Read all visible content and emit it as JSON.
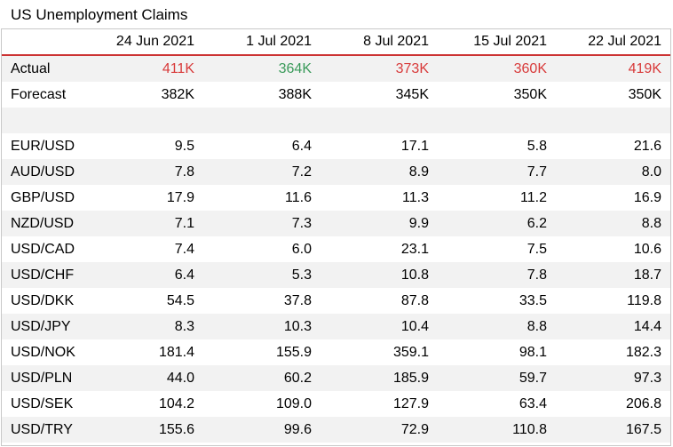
{
  "title": "US Unemployment Claims",
  "columns": [
    "24 Jun 2021",
    "1 Jul 2021",
    "8 Jul 2021",
    "15 Jul 2021",
    "22 Jul 2021"
  ],
  "actual": {
    "label": "Actual",
    "values": [
      "411K",
      "364K",
      "373K",
      "360K",
      "419K"
    ],
    "colors": [
      "#d83a3a",
      "#3a9a5a",
      "#d83a3a",
      "#d83a3a",
      "#d83a3a"
    ]
  },
  "forecast": {
    "label": "Forecast",
    "values": [
      "382K",
      "388K",
      "345K",
      "350K",
      "350K"
    ]
  },
  "rows": [
    {
      "label": "EUR/USD",
      "values": [
        "9.5",
        "6.4",
        "17.1",
        "5.8",
        "21.6"
      ]
    },
    {
      "label": "AUD/USD",
      "values": [
        "7.8",
        "7.2",
        "8.9",
        "7.7",
        "8.0"
      ]
    },
    {
      "label": "GBP/USD",
      "values": [
        "17.9",
        "11.6",
        "11.3",
        "11.2",
        "16.9"
      ]
    },
    {
      "label": "NZD/USD",
      "values": [
        "7.1",
        "7.3",
        "9.9",
        "6.2",
        "8.8"
      ]
    },
    {
      "label": "USD/CAD",
      "values": [
        "7.4",
        "6.0",
        "23.1",
        "7.5",
        "10.6"
      ]
    },
    {
      "label": "USD/CHF",
      "values": [
        "6.4",
        "5.3",
        "10.8",
        "7.8",
        "18.7"
      ]
    },
    {
      "label": "USD/DKK",
      "values": [
        "54.5",
        "37.8",
        "87.8",
        "33.5",
        "119.8"
      ]
    },
    {
      "label": "USD/JPY",
      "values": [
        "8.3",
        "10.3",
        "10.4",
        "8.8",
        "14.4"
      ]
    },
    {
      "label": "USD/NOK",
      "values": [
        "181.4",
        "155.9",
        "359.1",
        "98.1",
        "182.3"
      ]
    },
    {
      "label": "USD/PLN",
      "values": [
        "44.0",
        "60.2",
        "185.9",
        "59.7",
        "97.3"
      ]
    },
    {
      "label": "USD/SEK",
      "values": [
        "104.2",
        "109.0",
        "127.9",
        "63.4",
        "206.8"
      ]
    },
    {
      "label": "USD/TRY",
      "values": [
        "155.6",
        "99.6",
        "72.9",
        "110.8",
        "167.5"
      ]
    }
  ]
}
